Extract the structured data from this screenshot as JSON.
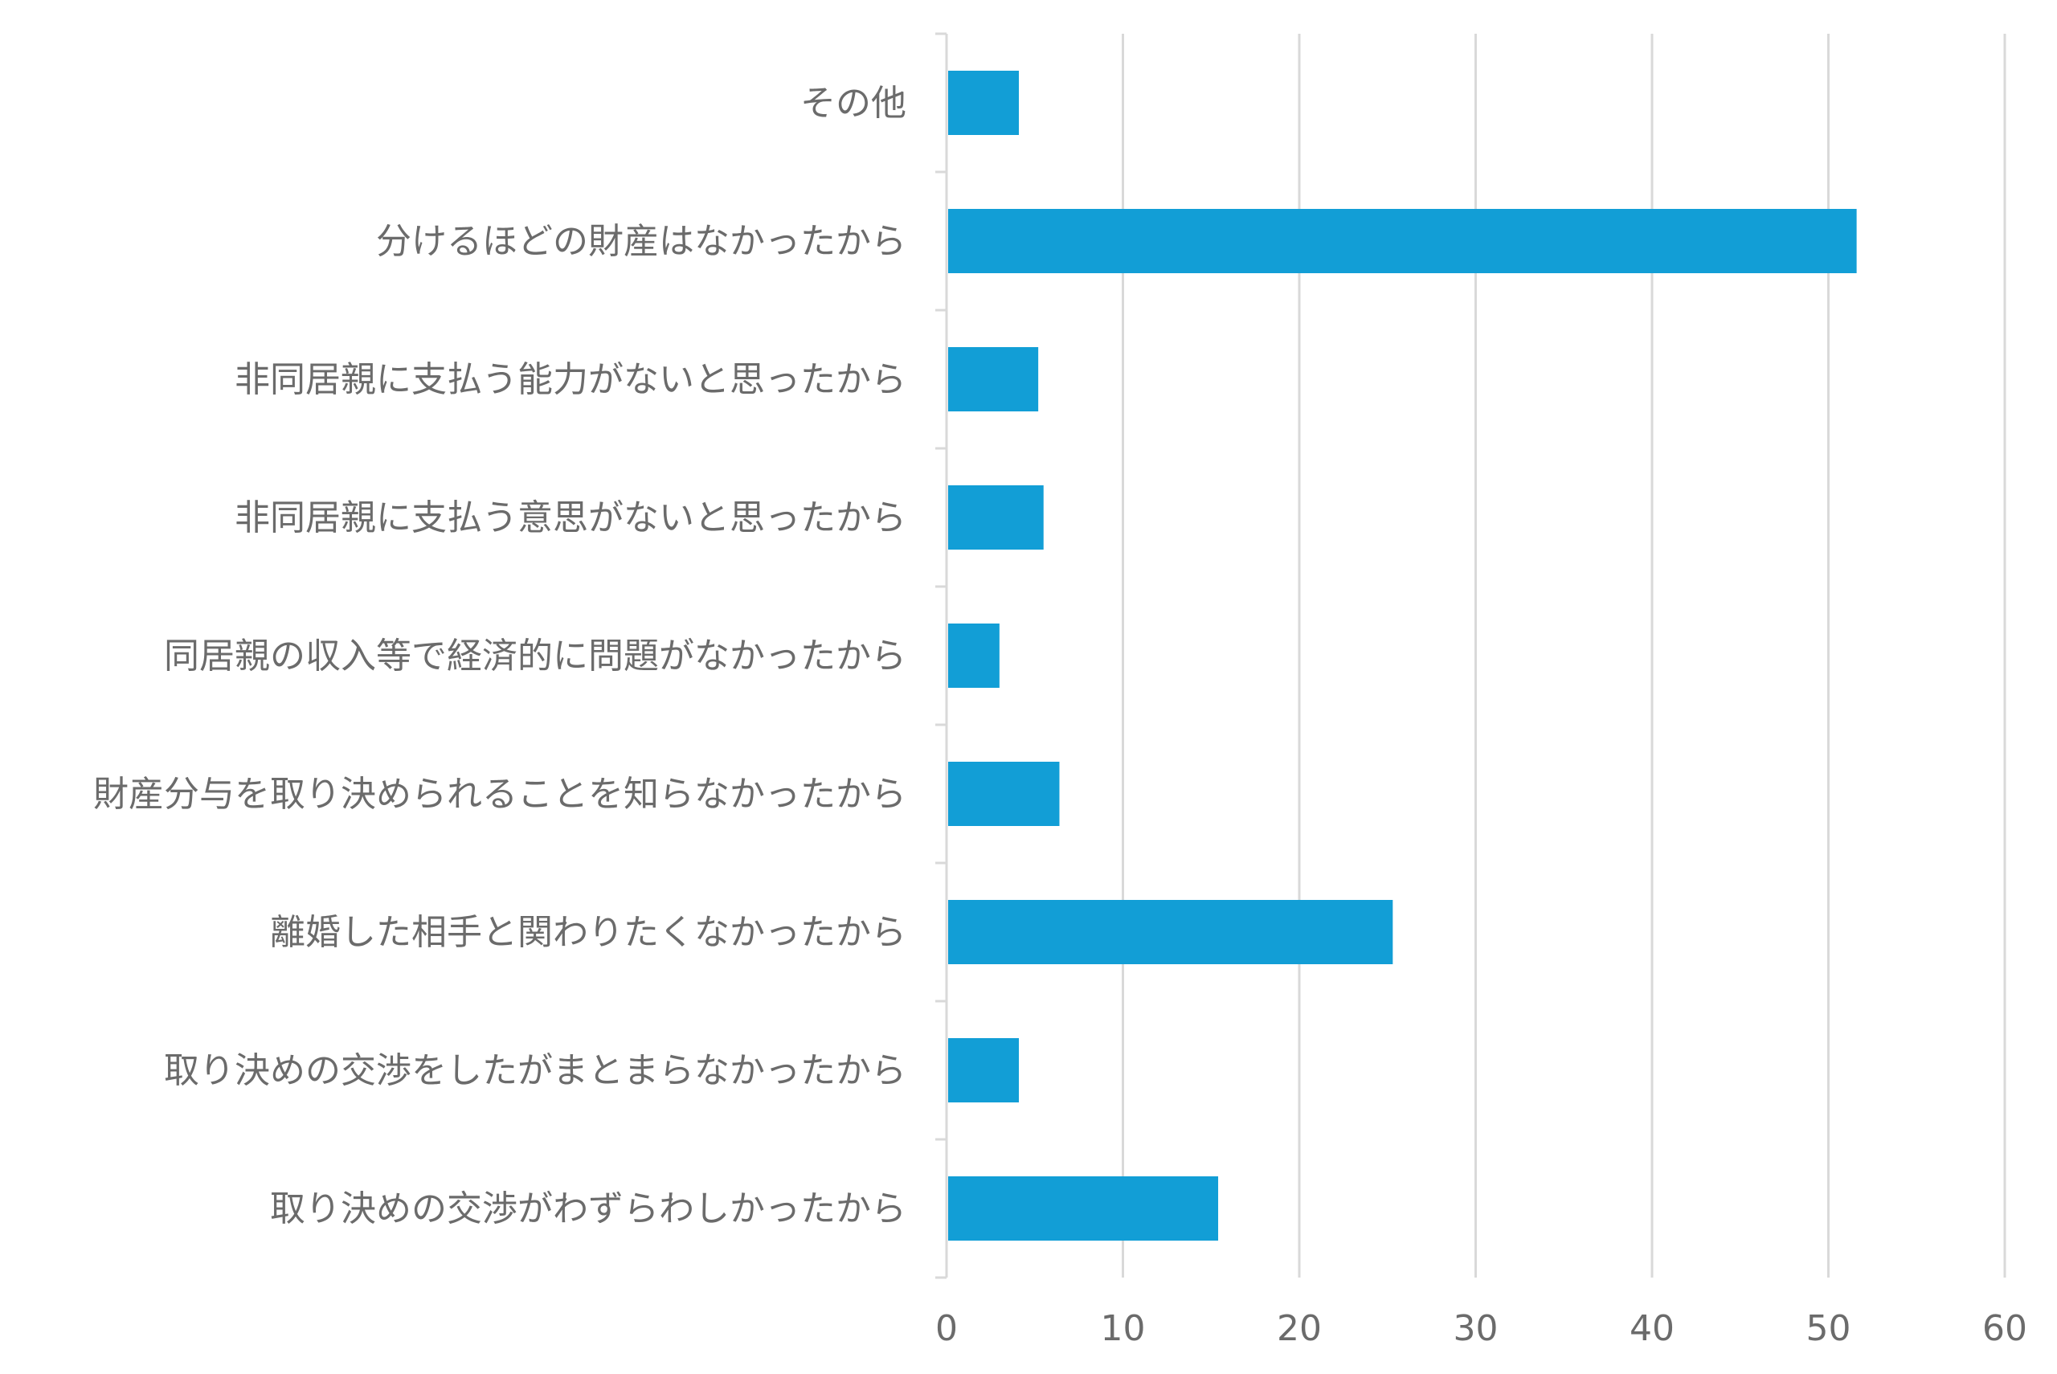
{
  "chart_data": {
    "type": "bar",
    "orientation": "horizontal",
    "categories": [
      "その他",
      "分けるほどの財産はなかったから",
      "非同居親に支払う能力がないと思ったから",
      "非同居親に支払う意思がないと思ったから",
      "同居親の収入等で経済的に問題がなかったから",
      "財産分与を取り決められることを知らなかったから",
      "離婚した相手と関わりたくなかったから",
      "取り決めの交渉をしたがまとまらなかったから",
      "取り決めの交渉がわずらわしかったから"
    ],
    "values": [
      4.1,
      51.6,
      5.2,
      5.5,
      3.0,
      6.4,
      25.3,
      4.1,
      15.4
    ],
    "xlim": [
      0,
      60
    ],
    "xticks": [
      "0",
      "10",
      "20",
      "30",
      "40",
      "50",
      "60"
    ],
    "xlabel": "",
    "ylabel": "",
    "title": "",
    "grid": true,
    "legend": "none",
    "bar_color": "#129ED6",
    "grid_color": "#D9D9D9",
    "text_color": "#6B6B6B"
  }
}
